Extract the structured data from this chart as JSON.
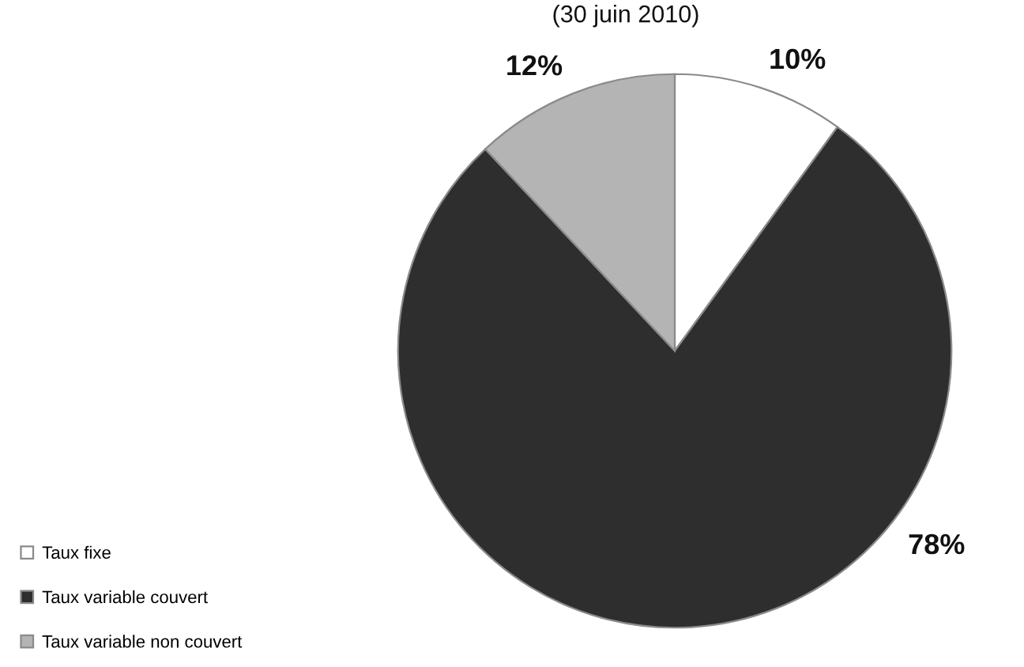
{
  "chart_data": {
    "type": "pie",
    "title": "(30 juin 2010)",
    "categories": [
      "Taux fixe",
      "Taux variable couvert",
      "Taux variable non couvert"
    ],
    "values": [
      10,
      78,
      12
    ],
    "colors": [
      "#ffffff",
      "#2e2e2e",
      "#b4b4b4"
    ],
    "value_labels": [
      "10%",
      "78%",
      "12%"
    ],
    "legend": "bottom left"
  }
}
